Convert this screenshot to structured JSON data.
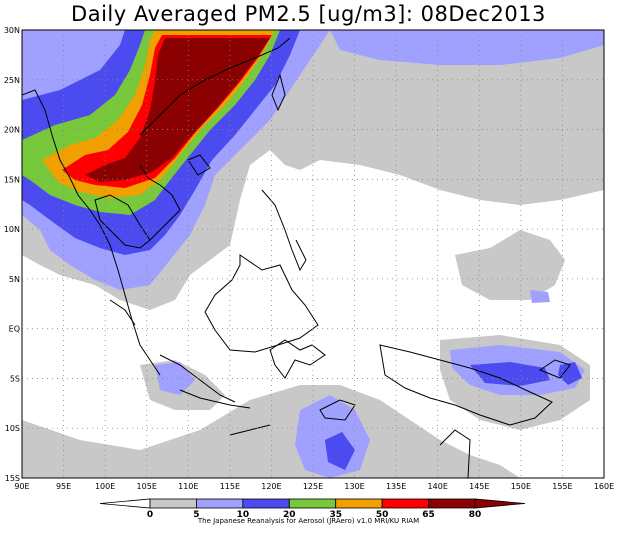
{
  "title": "Daily Averaged PM2.5 [ug/m3]: 08Dec2013",
  "credit": "The Japanese Reanalysis for Aerosol (JRAero) v1.0 MRI/KU RIAM",
  "colors": {
    "background": "#ffffff",
    "c0": "#ffffff",
    "c5": "#c8c8c8",
    "c10": "#a0a0ff",
    "c20": "#4b4bf0",
    "c35": "#78c83c",
    "c50": "#f0a000",
    "c65": "#ff0000",
    "c80": "#8b0000"
  },
  "map": {
    "lon_min": 90,
    "lon_max": 160,
    "lat_min": -15,
    "lat_max": 30,
    "lon_labels": [
      "90E",
      "95E",
      "100E",
      "105E",
      "110E",
      "115E",
      "120E",
      "125E",
      "130E",
      "135E",
      "140E",
      "145E",
      "150E",
      "155E",
      "160E"
    ],
    "lat_labels": [
      "30N",
      "25N",
      "20N",
      "15N",
      "10N",
      "5N",
      "EQ",
      "5S",
      "10S",
      "15S"
    ]
  },
  "colorbar": {
    "labels": [
      "0",
      "5",
      "10",
      "20",
      "35",
      "50",
      "65",
      "80"
    ]
  }
}
